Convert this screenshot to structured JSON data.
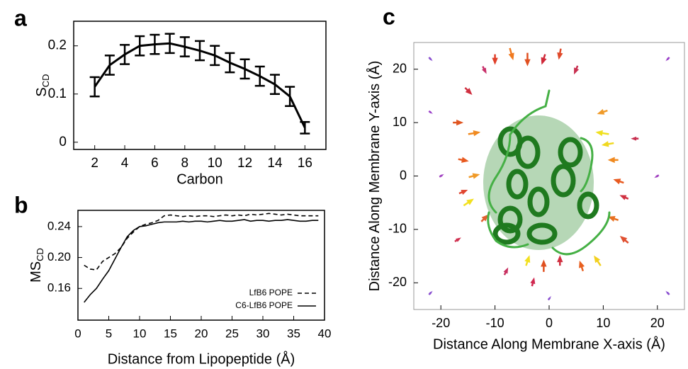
{
  "chart_data": [
    {
      "type": "errorline",
      "panel_label": "a",
      "xlabel": "Carbon",
      "ylabel": "S",
      "ylabel_sub": "CD",
      "color": "#000000",
      "x": [
        2,
        3,
        4,
        5,
        6,
        7,
        8,
        9,
        10,
        11,
        12,
        13,
        14,
        15,
        16
      ],
      "values": [
        0.115,
        0.16,
        0.182,
        0.2,
        0.203,
        0.205,
        0.198,
        0.19,
        0.18,
        0.165,
        0.152,
        0.137,
        0.12,
        0.095,
        0.03
      ],
      "errors": [
        0.02,
        0.02,
        0.02,
        0.02,
        0.02,
        0.02,
        0.02,
        0.02,
        0.02,
        0.02,
        0.02,
        0.02,
        0.02,
        0.02,
        0.012
      ],
      "xlim": [
        0.6,
        17.4
      ],
      "ylim": [
        -0.015,
        0.251
      ],
      "xticks": [
        2,
        4,
        6,
        8,
        10,
        12,
        14,
        16
      ],
      "yticks": [
        0,
        0.1,
        0.2
      ]
    },
    {
      "type": "line",
      "panel_label": "b",
      "xlabel": "Distance from Lipopeptide (Å)",
      "ylabel": "MS",
      "ylabel_sub": "CD",
      "legend": "lower right",
      "x": [
        1,
        2,
        3,
        4,
        5,
        6,
        7,
        8,
        9,
        10,
        11,
        12,
        13,
        14,
        15,
        16,
        17,
        18,
        19,
        20,
        21,
        22,
        23,
        24,
        25,
        26,
        27,
        28,
        29,
        30,
        31,
        32,
        33,
        34,
        35,
        36,
        37,
        38,
        39
      ],
      "series": [
        {
          "name": "LfB6 POPE",
          "color": "#000000",
          "dash": true,
          "values": [
            0.19,
            0.185,
            0.184,
            0.195,
            0.2,
            0.205,
            0.213,
            0.225,
            0.233,
            0.24,
            0.243,
            0.245,
            0.248,
            0.254,
            0.255,
            0.254,
            0.253,
            0.254,
            0.253,
            0.254,
            0.254,
            0.253,
            0.254,
            0.255,
            0.254,
            0.255,
            0.254,
            0.256,
            0.255,
            0.256,
            0.257,
            0.256,
            0.255,
            0.256,
            0.255,
            0.254,
            0.254,
            0.254,
            0.254
          ]
        },
        {
          "name": "C6-LfB6 POPE",
          "color": "#000000",
          "dash": false,
          "values": [
            0.142,
            0.152,
            0.16,
            0.172,
            0.183,
            0.198,
            0.213,
            0.227,
            0.235,
            0.24,
            0.241,
            0.243,
            0.245,
            0.246,
            0.246,
            0.246,
            0.247,
            0.246,
            0.247,
            0.247,
            0.246,
            0.247,
            0.248,
            0.247,
            0.247,
            0.248,
            0.249,
            0.247,
            0.248,
            0.248,
            0.247,
            0.248,
            0.248,
            0.249,
            0.248,
            0.247,
            0.247,
            0.248,
            0.248
          ]
        }
      ],
      "xlim": [
        0,
        40
      ],
      "ylim": [
        0.119,
        0.261
      ],
      "xticks": [
        0,
        5,
        10,
        15,
        20,
        25,
        30,
        35,
        40
      ],
      "yticks": [
        0.16,
        {
          "value": 0.2,
          "label": "0.20"
        },
        0.24
      ]
    },
    {
      "type": "quiver",
      "panel_label": "c",
      "xlabel": "Distance Along Membrane X-axis (Å)",
      "ylabel": "Distance Along Membrane Y-axis (Å)",
      "x": [
        -10,
        -7,
        -4,
        -1,
        2,
        -12,
        5,
        -15,
        -17,
        -14,
        -16,
        -14,
        -16,
        -15,
        -12,
        -17,
        10,
        11,
        12,
        13,
        14,
        12,
        14,
        10,
        16,
        -4,
        -1,
        2,
        6,
        9,
        -8,
        -3,
        -22,
        -22,
        22,
        22,
        -20,
        20,
        0,
        -22
      ],
      "y": [
        22,
        23,
        22,
        22,
        23,
        20,
        20,
        16,
        10,
        8,
        3,
        0,
        -3,
        -5,
        -8,
        -12,
        8,
        6,
        3,
        -1,
        -4,
        -8,
        -12,
        12,
        7,
        -16,
        -17,
        -16,
        -17,
        -16,
        -18,
        -20,
        22,
        -22,
        22,
        -22,
        0,
        0,
        -23,
        12
      ],
      "u": [
        0,
        0.5,
        0,
        -0.5,
        -0.3,
        0.5,
        -0.5,
        1,
        1.5,
        1.8,
        1.5,
        1.6,
        1.2,
        1.5,
        1,
        0.8,
        -2,
        -1.8,
        -1.5,
        -1.5,
        -1.2,
        -1.5,
        -1.2,
        -1.5,
        -1,
        0.5,
        0,
        0,
        -0.5,
        -1,
        0.5,
        0.3,
        0.4,
        0.4,
        -0.4,
        -0.4,
        0.5,
        -0.5,
        0.3,
        0.4
      ],
      "v": [
        -1.5,
        -1.8,
        -2,
        -1.5,
        -1.6,
        -1,
        -1.2,
        -1,
        0,
        0.3,
        -0.3,
        0.4,
        0.5,
        1,
        1,
        0.5,
        0.3,
        -0.3,
        0,
        0.5,
        0.5,
        0.5,
        1,
        -0.5,
        0,
        1.5,
        1.8,
        1.5,
        1.5,
        1.5,
        1,
        1.2,
        -0.4,
        0.4,
        -0.4,
        0.4,
        0.3,
        -0.3,
        0.4,
        -0.3
      ],
      "colors": [
        "#e0402a",
        "#f07a20",
        "#e05020",
        "#d02838",
        "#e04a2a",
        "#c8306a",
        "#c83050",
        "#d03040",
        "#e05520",
        "#f08a20",
        "#e85a20",
        "#f09a28",
        "#e04530",
        "#f2e020",
        "#e06030",
        "#d03050",
        "#f0e020",
        "#f0d820",
        "#f08a20",
        "#e85a20",
        "#d03040",
        "#e87020",
        "#e05030",
        "#f09a28",
        "#c83050",
        "#f2e020",
        "#e05020",
        "#d03040",
        "#e86020",
        "#f2d020",
        "#c83060",
        "#d02850",
        "#8a50d0",
        "#8a50d0",
        "#9a40c8",
        "#8a50d0",
        "#a040c0",
        "#a040c0",
        "#8a50d0",
        "#9a40c8"
      ],
      "xlim": [
        -25,
        25
      ],
      "ylim": [
        -25,
        25
      ],
      "xticks": [
        -20,
        -10,
        0,
        10,
        20
      ],
      "yticks": [
        -20,
        -10,
        0,
        10,
        20
      ]
    }
  ]
}
